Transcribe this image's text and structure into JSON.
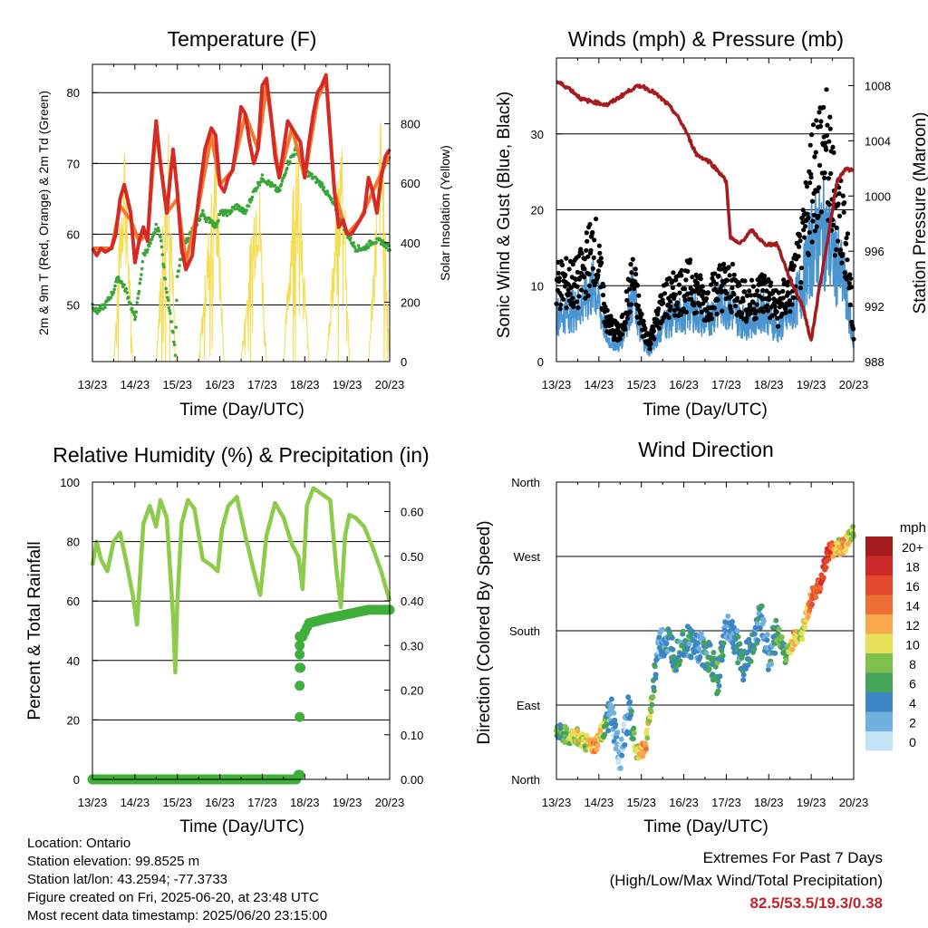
{
  "panels": {
    "temperature": {
      "title": "Temperature (F)",
      "xlabel": "Time (Day/UTC)",
      "ylabel_left": "2m & 9m T (Red, Orange) & 2m Td (Green)",
      "ylabel_right": "Solar Insolation (Yellow)"
    },
    "winds": {
      "title": "Winds (mph) & Pressure (mb)",
      "xlabel": "Time (Day/UTC)",
      "ylabel_left": "Sonic Wind & Gust (Blue, Black)",
      "ylabel_right": "Station Pressure (Maroon)"
    },
    "humidity": {
      "title": "Relative Humidity (%) & Precipitation (in)",
      "xlabel": "Time (Day/UTC)",
      "ylabel_left": "Percent & Total Rainfall"
    },
    "direction": {
      "title": "Wind Direction",
      "xlabel": "Time (Day/UTC)",
      "ylabel_left": "Direction (Colored By Speed)"
    }
  },
  "legend": {
    "unit": "mph",
    "levels": [
      "20+",
      "18",
      "16",
      "14",
      "12",
      "10",
      "8",
      "6",
      "4",
      "2",
      "0"
    ],
    "colors": [
      "#a51c1f",
      "#cf2a2a",
      "#e54a2c",
      "#ef6e35",
      "#f8a84b",
      "#e9e05a",
      "#7fc04c",
      "#42a45a",
      "#3d86c6",
      "#72b0e0",
      "#c4e3f6"
    ]
  },
  "info": {
    "location": "Location: Ontario",
    "elevation": "Station elevation: 99.8525 m",
    "latlon": "Station lat/lon: 43.2594; -77.3733",
    "created": "Figure created on Fri, 2025-06-20, at 23:48 UTC",
    "recent": "Most recent data timestamp: 2025/06/20 23:15:00"
  },
  "extremes": {
    "line1": "Extremes For Past 7 Days",
    "line2": "(High/Low/Max Wind/Total Precipitation)",
    "values": "82.5/53.5/19.3/0.38"
  },
  "chart_data": [
    {
      "type": "line",
      "panel": "temperature",
      "title": "Temperature (F)",
      "xlabel": "Time (Day/UTC)",
      "xticks": [
        "13/23",
        "14/23",
        "15/23",
        "16/23",
        "17/23",
        "18/23",
        "19/23",
        "20/23"
      ],
      "xlim": [
        0,
        7
      ],
      "ylim_left": [
        42,
        84
      ],
      "yticks_left": [
        50,
        60,
        70,
        80
      ],
      "ylim_right": [
        0,
        1000
      ],
      "yticks_right": [
        0,
        200,
        400,
        600,
        800
      ],
      "grid": true,
      "series": [
        {
          "name": "2m T",
          "color": "#d62a24",
          "axis": "left",
          "x": [
            0,
            0.1,
            0.2,
            0.3,
            0.45,
            0.55,
            0.65,
            0.75,
            0.9,
            1.0,
            1.1,
            1.2,
            1.3,
            1.4,
            1.5,
            1.6,
            1.75,
            1.9,
            2.0,
            2.1,
            2.2,
            2.35,
            2.5,
            2.65,
            2.8,
            2.9,
            3.0,
            3.1,
            3.2,
            3.3,
            3.4,
            3.5,
            3.6,
            3.7,
            3.8,
            3.9,
            4.0,
            4.1,
            4.2,
            4.3,
            4.4,
            4.5,
            4.6,
            4.7,
            4.8,
            4.9,
            5.0,
            5.1,
            5.2,
            5.3,
            5.4,
            5.5,
            5.6,
            5.7,
            5.8,
            5.9,
            6.0,
            6.1,
            6.2,
            6.3,
            6.4,
            6.5,
            6.6,
            6.7,
            6.8,
            6.9,
            7.0
          ],
          "y": [
            58,
            57,
            58,
            57.5,
            58,
            60,
            65,
            67,
            63,
            56,
            59,
            61,
            59,
            69,
            76,
            70,
            63,
            72,
            66,
            58,
            55,
            57,
            65,
            72,
            75,
            74,
            67,
            66,
            68,
            69,
            73,
            78,
            77,
            73,
            70,
            72,
            81,
            82,
            77,
            71,
            68,
            72,
            76,
            75,
            74,
            73,
            68,
            73,
            77,
            80,
            81,
            82.5,
            74,
            66,
            61,
            62,
            60,
            60,
            61,
            62,
            63,
            68,
            66,
            63,
            68,
            71,
            72
          ]
        },
        {
          "name": "9m T",
          "color": "#f07a30",
          "axis": "left",
          "x": [
            0,
            0.2,
            0.45,
            0.65,
            0.9,
            1.1,
            1.3,
            1.5,
            1.75,
            2.0,
            2.2,
            2.5,
            2.8,
            3.0,
            3.3,
            3.6,
            3.9,
            4.1,
            4.4,
            4.7,
            5.0,
            5.3,
            5.5,
            5.7,
            6.0,
            6.3,
            6.6,
            6.9,
            7.0
          ],
          "y": [
            58,
            58,
            58,
            64,
            62,
            59,
            60,
            75,
            63,
            65,
            56,
            64,
            74,
            67,
            69,
            77,
            72,
            81,
            68,
            75,
            68,
            79,
            82,
            66,
            60,
            62,
            66,
            70,
            71
          ]
        },
        {
          "name": "2m Td",
          "color": "#3aa63a",
          "axis": "left",
          "x": [
            0,
            0.1,
            0.2,
            0.3,
            0.4,
            0.5,
            0.6,
            0.7,
            0.8,
            0.9,
            1.0,
            1.1,
            1.2,
            1.3,
            1.4,
            1.5,
            1.6,
            1.7,
            1.8,
            1.9,
            1.95,
            2.0,
            2.1,
            2.2,
            2.3,
            2.4,
            2.5,
            2.6,
            2.7,
            2.8,
            2.9,
            3.0,
            3.2,
            3.4,
            3.6,
            3.8,
            4.0,
            4.2,
            4.4,
            4.6,
            4.8,
            5.0,
            5.2,
            5.4,
            5.6,
            5.8,
            6.0,
            6.2,
            6.4,
            6.6,
            6.8,
            7.0
          ],
          "y": [
            50,
            49,
            49.5,
            50,
            51,
            52,
            54,
            53,
            52,
            50,
            48,
            52,
            57,
            58,
            59,
            61,
            60,
            54,
            50,
            46,
            43,
            54,
            57,
            59,
            60,
            61,
            62,
            63,
            62,
            62,
            61,
            63,
            63,
            64,
            63,
            66,
            68,
            67,
            66,
            70,
            72,
            69,
            68,
            67,
            65,
            63,
            60,
            58,
            58,
            59,
            59,
            58
          ]
        },
        {
          "name": "Solar Insolation",
          "color": "#f5dc50",
          "axis": "right",
          "x": [
            0,
            0.5,
            0.75,
            0.95,
            1.0,
            1.5,
            1.8,
            1.95,
            2.0,
            2.5,
            2.9,
            3.1,
            3.2,
            3.5,
            3.9,
            4.1,
            4.2,
            4.5,
            4.8,
            5.1,
            5.2,
            5.5,
            5.9,
            6.05,
            6.2,
            6.5,
            6.8,
            7.0
          ],
          "y": [
            0,
            0,
            850,
            0,
            0,
            0,
            940,
            0,
            0,
            0,
            800,
            0,
            0,
            0,
            760,
            0,
            0,
            0,
            860,
            0,
            0,
            0,
            880,
            0,
            0,
            0,
            900,
            0
          ]
        }
      ]
    },
    {
      "type": "scatter",
      "panel": "winds",
      "title": "Winds (mph) & Pressure (mb)",
      "xlabel": "Time (Day/UTC)",
      "xticks": [
        "13/23",
        "14/23",
        "15/23",
        "16/23",
        "17/23",
        "18/23",
        "19/23",
        "20/23"
      ],
      "xlim": [
        0,
        7
      ],
      "ylim_left": [
        0,
        40
      ],
      "yticks_left": [
        0,
        10,
        20,
        30
      ],
      "ylim_right": [
        988,
        1010
      ],
      "yticks_right": [
        988,
        992,
        996,
        1000,
        1004,
        1008
      ],
      "grid": true,
      "series": [
        {
          "name": "Sonic Wind",
          "color": "#4a94d0",
          "axis": "left",
          "x": [
            0,
            0.5,
            0.9,
            1.2,
            1.5,
            1.8,
            2.0,
            2.2,
            2.5,
            2.9,
            3.2,
            3.5,
            3.9,
            4.2,
            4.5,
            4.9,
            5.2,
            5.5,
            5.8,
            6.0,
            6.3,
            6.5,
            6.8,
            7.0
          ],
          "y": [
            6,
            7,
            10,
            3,
            2,
            9,
            3,
            1,
            5,
            6,
            7,
            5,
            8,
            6,
            5,
            7,
            4,
            6,
            10,
            15,
            17,
            14,
            10,
            2
          ]
        },
        {
          "name": "Gust",
          "color": "#000000",
          "axis": "left",
          "x": [
            0,
            0.5,
            0.9,
            1.2,
            1.5,
            1.8,
            2.0,
            2.2,
            2.5,
            2.9,
            3.2,
            3.5,
            3.9,
            4.2,
            4.5,
            4.9,
            5.2,
            5.5,
            5.8,
            6.0,
            6.3,
            6.5,
            6.8,
            7.0
          ],
          "y": [
            12,
            12,
            18,
            6,
            4,
            13,
            6,
            3,
            9,
            11,
            12,
            9,
            12,
            11,
            9,
            11,
            8,
            11,
            17,
            28,
            34,
            26,
            20,
            4
          ]
        },
        {
          "name": "Station Pressure",
          "color": "#a51c1f",
          "axis": "right",
          "x": [
            0,
            0.3,
            0.6,
            0.9,
            1.2,
            1.5,
            1.8,
            2.0,
            2.3,
            2.6,
            2.8,
            3.0,
            3.3,
            3.6,
            3.9,
            4.0,
            4.1,
            4.3,
            4.6,
            4.9,
            5.2,
            5.5,
            5.8,
            6.0,
            6.2,
            6.4,
            6.6,
            6.8,
            7.0
          ],
          "y": [
            1008.3,
            1007.8,
            1007.0,
            1006.8,
            1006.6,
            1007.2,
            1007.8,
            1008.0,
            1007.5,
            1006.7,
            1006.0,
            1005.0,
            1003.0,
            1002.5,
            1001.5,
            1001.0,
            997.0,
            996.5,
            997.5,
            996.5,
            996.5,
            994.0,
            992.0,
            989.5,
            993.5,
            997.0,
            1001.0,
            1002.0,
            1001.8
          ]
        }
      ]
    },
    {
      "type": "line",
      "panel": "humidity",
      "title": "Relative Humidity (%) & Precipitation (in)",
      "xlabel": "Time (Day/UTC)",
      "xticks": [
        "13/23",
        "14/23",
        "15/23",
        "16/23",
        "17/23",
        "18/23",
        "19/23",
        "20/23"
      ],
      "xlim": [
        0,
        7
      ],
      "ylim_left": [
        0,
        100
      ],
      "yticks_left": [
        0,
        20,
        40,
        60,
        80,
        100
      ],
      "ylim_right": [
        0,
        0.666
      ],
      "yticks_right": [
        "0.00",
        "0.10",
        "0.20",
        "0.30",
        "0.40",
        "0.50",
        "0.60"
      ],
      "grid": true,
      "series": [
        {
          "name": "Relative Humidity",
          "color": "#8dcb4a",
          "axis": "left",
          "x": [
            0,
            0.1,
            0.2,
            0.35,
            0.5,
            0.65,
            0.8,
            0.95,
            1.05,
            1.2,
            1.35,
            1.5,
            1.6,
            1.75,
            1.9,
            1.95,
            2.0,
            2.1,
            2.25,
            2.4,
            2.6,
            2.8,
            2.95,
            3.05,
            3.2,
            3.4,
            3.6,
            3.8,
            3.95,
            4.1,
            4.3,
            4.5,
            4.7,
            4.85,
            4.95,
            5.05,
            5.2,
            5.4,
            5.6,
            5.75,
            5.85,
            5.95,
            6.05,
            6.2,
            6.4,
            6.6,
            6.8,
            7.0
          ],
          "y": [
            72,
            80,
            74,
            70,
            80,
            83,
            73,
            62,
            52,
            86,
            92,
            85,
            94,
            88,
            55,
            36,
            60,
            86,
            94,
            91,
            74,
            72,
            70,
            84,
            92,
            95,
            82,
            70,
            62,
            82,
            93,
            88,
            79,
            75,
            64,
            92,
            98,
            96,
            94,
            70,
            58,
            82,
            89,
            88,
            85,
            78,
            70,
            60
          ]
        },
        {
          "name": "Total Rainfall",
          "color": "#3fae3a",
          "axis": "right",
          "x": [
            0,
            4.8,
            4.85,
            4.88,
            4.9,
            4.95,
            5.1,
            5.5,
            6.0,
            6.5,
            7.0
          ],
          "y": [
            0,
            0,
            0.01,
            0.14,
            0.25,
            0.32,
            0.35,
            0.36,
            0.37,
            0.38,
            0.38
          ]
        }
      ]
    },
    {
      "type": "scatter",
      "panel": "direction",
      "title": "Wind Direction",
      "xlabel": "Time (Day/UTC)",
      "xticks": [
        "13/23",
        "14/23",
        "15/23",
        "16/23",
        "17/23",
        "18/23",
        "19/23",
        "20/23"
      ],
      "xlim": [
        0,
        7
      ],
      "ylim": [
        0,
        360
      ],
      "yticks": [
        "North",
        "East",
        "South",
        "West",
        "North"
      ],
      "grid": true,
      "series": [
        {
          "name": "Wind Direction",
          "color_by": "speed (mph)",
          "x": [
            0.1,
            0.3,
            0.5,
            0.7,
            0.9,
            1.3,
            1.5,
            1.7,
            1.9,
            2.1,
            2.4,
            2.6,
            2.8,
            3.0,
            3.2,
            3.4,
            3.6,
            3.8,
            4.0,
            4.2,
            4.4,
            4.6,
            4.8,
            5.0,
            5.2,
            5.4,
            5.6,
            5.8,
            6.0,
            6.2,
            6.4,
            6.6,
            6.8,
            7.0
          ],
          "y": [
            58,
            50,
            52,
            45,
            40,
            80,
            20,
            85,
            30,
            40,
            160,
            170,
            150,
            170,
            165,
            160,
            150,
            120,
            190,
            170,
            140,
            160,
            200,
            150,
            180,
            150,
            170,
            180,
            220,
            235,
            275,
            280,
            285,
            300
          ],
          "speed": [
            6,
            8,
            10,
            8,
            14,
            2,
            2,
            3,
            10,
            12,
            2,
            4,
            6,
            4,
            4,
            3,
            5,
            6,
            3,
            4,
            5,
            5,
            4,
            3,
            6,
            7,
            12,
            8,
            14,
            16,
            18,
            10,
            12,
            8
          ]
        }
      ]
    }
  ]
}
